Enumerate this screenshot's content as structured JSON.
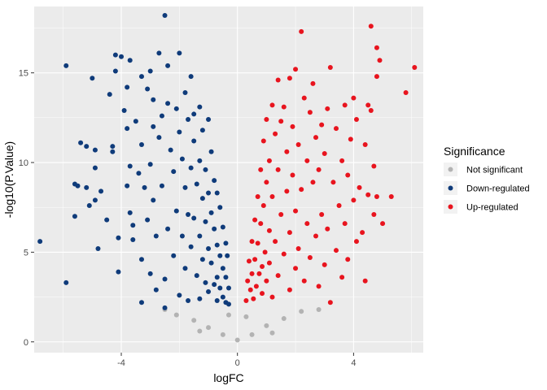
{
  "chart_data": {
    "type": "scatter",
    "title": "",
    "xlabel": "logFC",
    "ylabel": "-log10(P.Value)",
    "xlim": [
      -7.0,
      6.4
    ],
    "ylim": [
      -0.6,
      18.7
    ],
    "x_ticks": [
      -4,
      0,
      4
    ],
    "y_ticks": [
      0,
      5,
      10,
      15
    ],
    "x_tick_labels": [
      "-4",
      "0",
      "4"
    ],
    "y_tick_labels": [
      "0",
      "5",
      "10",
      "15"
    ],
    "grid": true,
    "legend": {
      "title": "Significance",
      "position": "right",
      "entries": [
        "Not significant",
        "Down-regulated",
        "Up-regulated"
      ]
    },
    "colors": {
      "Not significant": "#b3b3b3",
      "Down-regulated": "#0f3b7a",
      "Up-regulated": "#e8141e",
      "panel": "#ebebeb",
      "grid_major": "#ffffff"
    },
    "series": [
      {
        "name": "Not significant",
        "points": [
          [
            -2.1,
            1.5
          ],
          [
            -1.5,
            1.2
          ],
          [
            -1.0,
            0.8
          ],
          [
            -0.5,
            0.4
          ],
          [
            0.0,
            0.1
          ],
          [
            0.5,
            0.4
          ],
          [
            1.0,
            0.9
          ],
          [
            1.6,
            1.3
          ],
          [
            2.2,
            1.7
          ],
          [
            -2.5,
            1.8
          ],
          [
            2.8,
            1.8
          ],
          [
            -0.3,
            1.5
          ],
          [
            0.3,
            1.4
          ],
          [
            1.2,
            0.5
          ],
          [
            -1.3,
            0.6
          ]
        ]
      },
      {
        "name": "Down-regulated",
        "points": [
          [
            -6.8,
            5.6
          ],
          [
            -5.9,
            15.4
          ],
          [
            -5.9,
            3.3
          ],
          [
            -5.6,
            8.8
          ],
          [
            -5.6,
            7.0
          ],
          [
            -5.5,
            8.7
          ],
          [
            -5.4,
            11.1
          ],
          [
            -5.2,
            10.9
          ],
          [
            -5.2,
            8.6
          ],
          [
            -5.1,
            7.6
          ],
          [
            -5.0,
            14.7
          ],
          [
            -4.9,
            9.7
          ],
          [
            -4.9,
            10.7
          ],
          [
            -4.9,
            7.9
          ],
          [
            -4.8,
            5.2
          ],
          [
            -4.7,
            8.4
          ],
          [
            -4.5,
            6.8
          ],
          [
            -4.4,
            13.8
          ],
          [
            -4.3,
            10.9
          ],
          [
            -4.3,
            10.6
          ],
          [
            -4.2,
            16.0
          ],
          [
            -4.2,
            15.1
          ],
          [
            -4.1,
            5.8
          ],
          [
            -4.1,
            3.9
          ],
          [
            -4.0,
            15.9
          ],
          [
            -3.9,
            12.9
          ],
          [
            -3.8,
            14.2
          ],
          [
            -3.8,
            11.9
          ],
          [
            -3.8,
            8.7
          ],
          [
            -3.7,
            15.7
          ],
          [
            -3.7,
            9.8
          ],
          [
            -3.7,
            7.2
          ],
          [
            -3.6,
            6.5
          ],
          [
            -3.6,
            5.7
          ],
          [
            -3.5,
            12.3
          ],
          [
            -3.4,
            9.4
          ],
          [
            -3.3,
            14.8
          ],
          [
            -3.3,
            11.0
          ],
          [
            -3.3,
            4.6
          ],
          [
            -3.3,
            2.2
          ],
          [
            -3.2,
            8.6
          ],
          [
            -3.1,
            14.1
          ],
          [
            -3.1,
            6.8
          ],
          [
            -3.0,
            15.1
          ],
          [
            -3.0,
            9.9
          ],
          [
            -3.0,
            3.8
          ],
          [
            -2.9,
            13.5
          ],
          [
            -2.9,
            12.0
          ],
          [
            -2.9,
            7.9
          ],
          [
            -2.8,
            5.9
          ],
          [
            -2.8,
            2.9
          ],
          [
            -2.7,
            16.1
          ],
          [
            -2.7,
            11.4
          ],
          [
            -2.6,
            12.6
          ],
          [
            -2.6,
            8.7
          ],
          [
            -2.5,
            18.2
          ],
          [
            -2.5,
            3.5
          ],
          [
            -2.5,
            1.9
          ],
          [
            -2.4,
            15.4
          ],
          [
            -2.4,
            13.3
          ],
          [
            -2.4,
            6.3
          ],
          [
            -2.3,
            10.7
          ],
          [
            -2.2,
            9.5
          ],
          [
            -2.2,
            4.8
          ],
          [
            -2.1,
            13.0
          ],
          [
            -2.1,
            7.3
          ],
          [
            -2.0,
            16.1
          ],
          [
            -2.0,
            11.7
          ],
          [
            -2.0,
            2.6
          ],
          [
            -1.9,
            10.2
          ],
          [
            -1.9,
            5.9
          ],
          [
            -1.8,
            13.9
          ],
          [
            -1.8,
            8.6
          ],
          [
            -1.8,
            4.1
          ],
          [
            -1.7,
            12.4
          ],
          [
            -1.7,
            7.1
          ],
          [
            -1.7,
            2.3
          ],
          [
            -1.6,
            14.8
          ],
          [
            -1.6,
            9.7
          ],
          [
            -1.6,
            5.3
          ],
          [
            -1.5,
            12.7
          ],
          [
            -1.5,
            11.2
          ],
          [
            -1.5,
            6.9
          ],
          [
            -1.4,
            8.8
          ],
          [
            -1.4,
            3.7
          ],
          [
            -1.3,
            13.1
          ],
          [
            -1.3,
            10.1
          ],
          [
            -1.3,
            5.9
          ],
          [
            -1.3,
            2.4
          ],
          [
            -1.2,
            11.8
          ],
          [
            -1.2,
            8.0
          ],
          [
            -1.2,
            4.6
          ],
          [
            -1.1,
            9.6
          ],
          [
            -1.1,
            6.7
          ],
          [
            -1.1,
            3.3
          ],
          [
            -1.0,
            12.4
          ],
          [
            -1.0,
            8.3
          ],
          [
            -1.0,
            5.2
          ],
          [
            -1.0,
            2.8
          ],
          [
            -0.9,
            10.6
          ],
          [
            -0.9,
            7.2
          ],
          [
            -0.9,
            4.4
          ],
          [
            -0.8,
            9.0
          ],
          [
            -0.8,
            6.3
          ],
          [
            -0.8,
            3.2
          ],
          [
            -0.7,
            8.3
          ],
          [
            -0.7,
            5.4
          ],
          [
            -0.7,
            3.6
          ],
          [
            -0.7,
            2.3
          ],
          [
            -0.6,
            7.5
          ],
          [
            -0.6,
            4.8
          ],
          [
            -0.6,
            3.0
          ],
          [
            -0.5,
            6.4
          ],
          [
            -0.5,
            4.1
          ],
          [
            -0.5,
            2.5
          ],
          [
            -0.4,
            5.5
          ],
          [
            -0.4,
            3.6
          ],
          [
            -0.4,
            2.2
          ],
          [
            -0.35,
            4.8
          ],
          [
            -0.3,
            3.0
          ],
          [
            -0.3,
            2.1
          ]
        ]
      },
      {
        "name": "Up-regulated",
        "points": [
          [
            0.3,
            2.3
          ],
          [
            0.35,
            3.4
          ],
          [
            0.4,
            4.5
          ],
          [
            0.45,
            2.9
          ],
          [
            0.5,
            5.6
          ],
          [
            0.5,
            3.8
          ],
          [
            0.55,
            2.4
          ],
          [
            0.6,
            6.8
          ],
          [
            0.6,
            4.6
          ],
          [
            0.65,
            3.1
          ],
          [
            0.7,
            8.1
          ],
          [
            0.7,
            5.5
          ],
          [
            0.75,
            3.8
          ],
          [
            0.8,
            9.6
          ],
          [
            0.8,
            6.6
          ],
          [
            0.85,
            4.2
          ],
          [
            0.85,
            2.7
          ],
          [
            0.9,
            11.2
          ],
          [
            0.9,
            7.6
          ],
          [
            0.95,
            5.0
          ],
          [
            1.0,
            12.4
          ],
          [
            1.0,
            8.9
          ],
          [
            1.0,
            3.4
          ],
          [
            1.1,
            10.1
          ],
          [
            1.1,
            6.2
          ],
          [
            1.1,
            4.4
          ],
          [
            1.2,
            13.2
          ],
          [
            1.2,
            8.1
          ],
          [
            1.2,
            2.5
          ],
          [
            1.3,
            11.6
          ],
          [
            1.3,
            5.6
          ],
          [
            1.4,
            14.6
          ],
          [
            1.4,
            9.6
          ],
          [
            1.4,
            3.7
          ],
          [
            1.5,
            12.3
          ],
          [
            1.5,
            7.1
          ],
          [
            1.6,
            13.1
          ],
          [
            1.6,
            4.9
          ],
          [
            1.7,
            10.6
          ],
          [
            1.7,
            8.4
          ],
          [
            1.8,
            14.7
          ],
          [
            1.8,
            6.1
          ],
          [
            1.8,
            2.9
          ],
          [
            1.9,
            12.0
          ],
          [
            1.9,
            9.3
          ],
          [
            2.0,
            15.2
          ],
          [
            2.0,
            7.3
          ],
          [
            2.0,
            4.1
          ],
          [
            2.1,
            11.0
          ],
          [
            2.1,
            5.2
          ],
          [
            2.2,
            17.3
          ],
          [
            2.2,
            8.5
          ],
          [
            2.3,
            13.6
          ],
          [
            2.3,
            3.4
          ],
          [
            2.4,
            10.1
          ],
          [
            2.4,
            6.6
          ],
          [
            2.5,
            12.8
          ],
          [
            2.5,
            4.7
          ],
          [
            2.6,
            14.4
          ],
          [
            2.6,
            8.9
          ],
          [
            2.7,
            11.4
          ],
          [
            2.7,
            5.9
          ],
          [
            2.8,
            9.6
          ],
          [
            2.8,
            3.1
          ],
          [
            2.9,
            12.1
          ],
          [
            2.9,
            7.1
          ],
          [
            3.0,
            10.5
          ],
          [
            3.0,
            4.3
          ],
          [
            3.1,
            13.0
          ],
          [
            3.1,
            6.3
          ],
          [
            3.2,
            15.3
          ],
          [
            3.2,
            2.2
          ],
          [
            3.3,
            8.9
          ],
          [
            3.4,
            11.9
          ],
          [
            3.4,
            5.1
          ],
          [
            3.5,
            7.6
          ],
          [
            3.6,
            10.1
          ],
          [
            3.6,
            3.6
          ],
          [
            3.7,
            13.2
          ],
          [
            3.7,
            6.6
          ],
          [
            3.8,
            9.3
          ],
          [
            3.8,
            4.6
          ],
          [
            3.9,
            11.3
          ],
          [
            4.0,
            13.6
          ],
          [
            4.0,
            7.9
          ],
          [
            4.1,
            5.6
          ],
          [
            4.1,
            12.4
          ],
          [
            4.2,
            8.6
          ],
          [
            4.3,
            6.1
          ],
          [
            4.4,
            11.0
          ],
          [
            4.4,
            3.4
          ],
          [
            4.5,
            13.2
          ],
          [
            4.5,
            8.2
          ],
          [
            4.6,
            17.6
          ],
          [
            4.6,
            12.9
          ],
          [
            4.7,
            9.8
          ],
          [
            4.7,
            7.1
          ],
          [
            4.8,
            16.4
          ],
          [
            4.8,
            14.8
          ],
          [
            4.8,
            8.1
          ],
          [
            4.9,
            15.7
          ],
          [
            5.0,
            6.6
          ],
          [
            5.3,
            8.1
          ],
          [
            5.8,
            13.9
          ],
          [
            6.1,
            15.3
          ]
        ]
      }
    ]
  }
}
